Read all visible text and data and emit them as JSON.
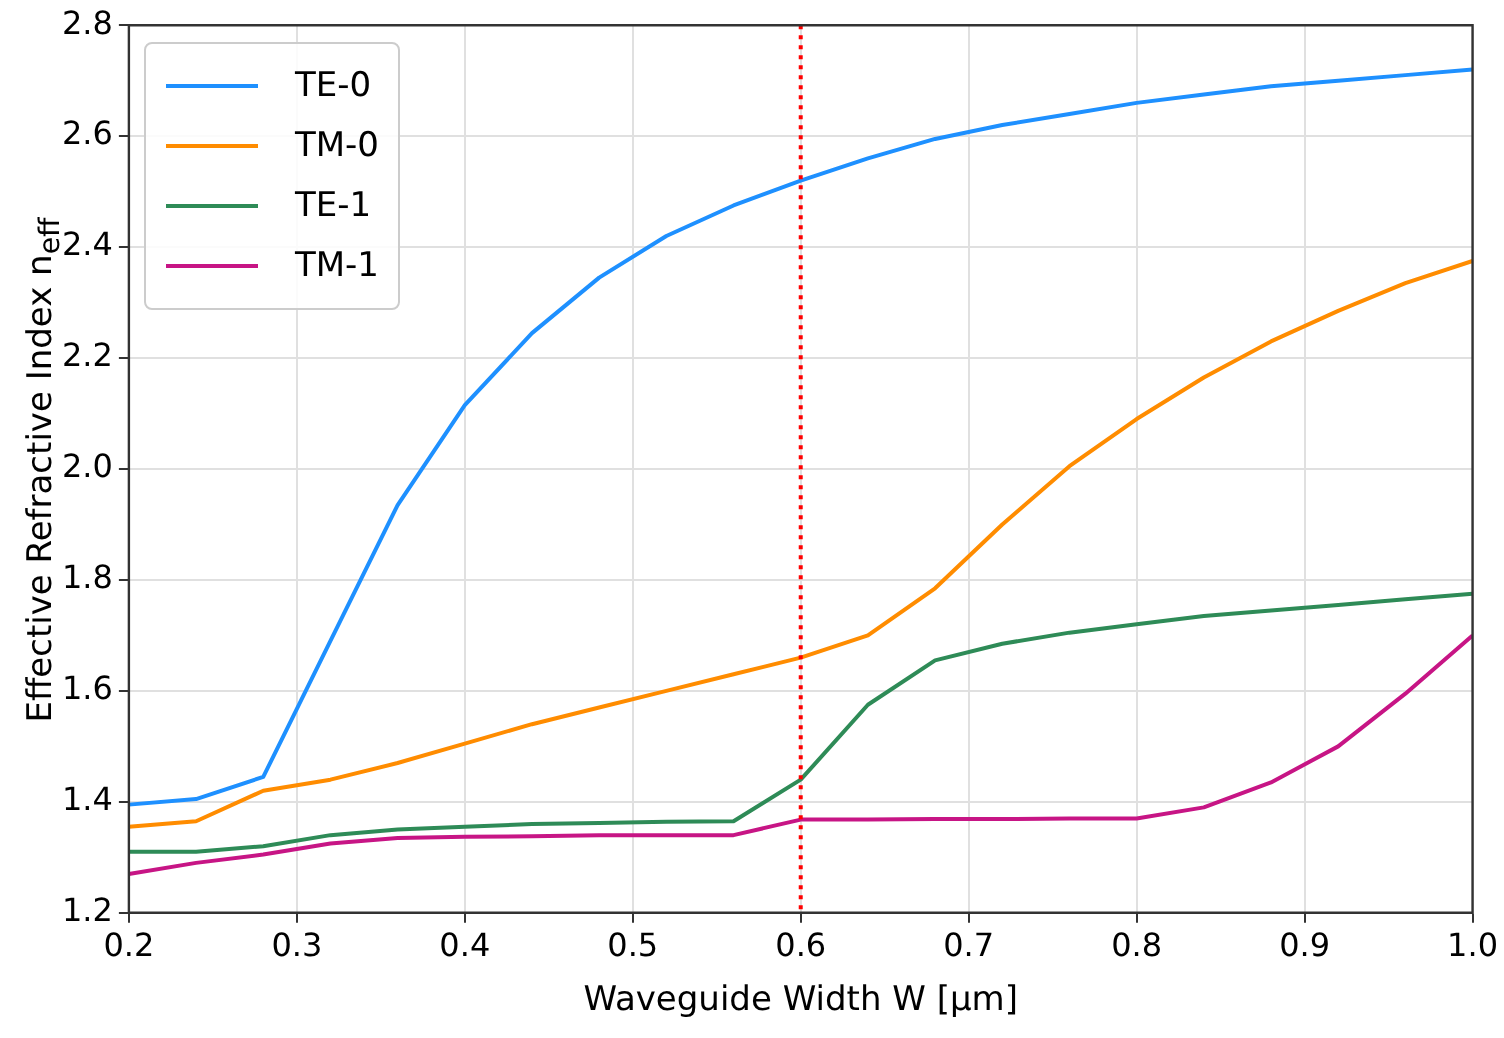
{
  "chart_data": {
    "type": "line",
    "xlabel": "Waveguide Width W [μm]",
    "ylabel": "Effective Refractive Index n$_{eff}$",
    "x": [
      0.2,
      0.24,
      0.28,
      0.32,
      0.36,
      0.4,
      0.44,
      0.48,
      0.52,
      0.56,
      0.6,
      0.64,
      0.68,
      0.72,
      0.76,
      0.8,
      0.84,
      0.88,
      0.92,
      0.96,
      1.0
    ],
    "series": [
      {
        "name": "TE-0",
        "color": "#1e90ff",
        "values": [
          1.395,
          1.405,
          1.445,
          1.69,
          1.935,
          2.115,
          2.245,
          2.345,
          2.42,
          2.475,
          2.52,
          2.56,
          2.595,
          2.62,
          2.64,
          2.66,
          2.675,
          2.69,
          2.7,
          2.71,
          2.72
        ]
      },
      {
        "name": "TM-0",
        "color": "#ff8c00",
        "values": [
          1.355,
          1.365,
          1.42,
          1.44,
          1.47,
          1.505,
          1.54,
          1.57,
          1.6,
          1.63,
          1.66,
          1.7,
          1.785,
          1.9,
          2.005,
          2.09,
          2.165,
          2.23,
          2.285,
          2.335,
          2.375
        ]
      },
      {
        "name": "TE-1",
        "color": "#2e8b57",
        "values": [
          1.31,
          1.31,
          1.32,
          1.34,
          1.35,
          1.355,
          1.36,
          1.362,
          1.364,
          1.365,
          1.44,
          1.575,
          1.655,
          1.685,
          1.705,
          1.72,
          1.735,
          1.745,
          1.755,
          1.765,
          1.775
        ]
      },
      {
        "name": "TM-1",
        "color": "#c71585",
        "values": [
          1.27,
          1.29,
          1.305,
          1.325,
          1.335,
          1.337,
          1.338,
          1.34,
          1.34,
          1.34,
          1.368,
          1.368,
          1.369,
          1.369,
          1.37,
          1.37,
          1.39,
          1.435,
          1.5,
          1.595,
          1.7
        ]
      }
    ],
    "xlim": [
      0.2,
      1
    ],
    "xticks": [
      0.2,
      0.3,
      0.4,
      0.5,
      0.6,
      0.7,
      0.8,
      0.9,
      {
        "value": 1,
        "label": "1.0"
      }
    ],
    "ylim": [
      1.2,
      2.8
    ],
    "yticks": [
      1.2,
      1.4,
      1.6,
      1.8,
      {
        "value": 2,
        "label": "2.0"
      },
      2.2,
      2.4,
      2.6,
      2.8
    ],
    "ref_lines": [
      {
        "axis": "x",
        "value": 0.6,
        "color": "#ff0000",
        "line_style": "dotted"
      }
    ],
    "grid": true,
    "legend": "top left",
    "marker": "none",
    "line_style": "solid"
  }
}
